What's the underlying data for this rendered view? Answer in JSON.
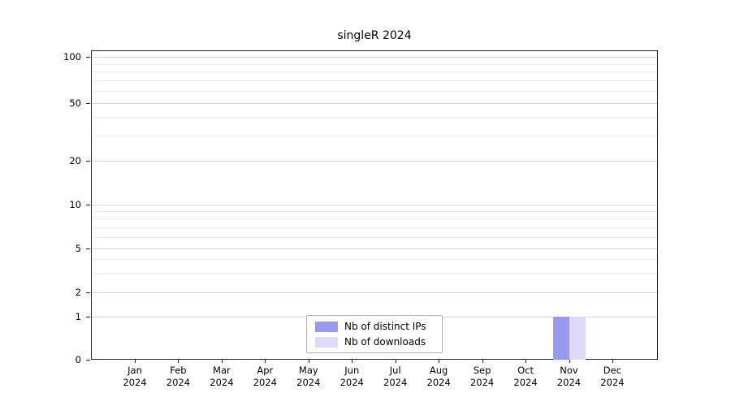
{
  "title": "singleR 2024",
  "legend": {
    "items": [
      {
        "label": "Nb of distinct IPs",
        "color": "#9999ee"
      },
      {
        "label": "Nb of downloads",
        "color": "#dcdcf8"
      }
    ]
  },
  "chart_data": {
    "type": "bar",
    "title": "singleR 2024",
    "categories": [
      "Jan",
      "Feb",
      "Mar",
      "Apr",
      "May",
      "Jun",
      "Jul",
      "Aug",
      "Sep",
      "Oct",
      "Nov",
      "Dec"
    ],
    "year_label": "2024",
    "series": [
      {
        "name": "Nb of distinct IPs",
        "color": "#9999ee",
        "values": [
          0,
          0,
          0,
          0,
          0,
          0,
          0,
          0,
          0,
          0,
          1,
          0
        ]
      },
      {
        "name": "Nb of downloads",
        "color": "#dcdcf8",
        "values": [
          0,
          0,
          0,
          0,
          0,
          0,
          0,
          0,
          0,
          0,
          1,
          0
        ]
      }
    ],
    "xlabel": "",
    "ylabel": "",
    "y_ticks": [
      0,
      1,
      2,
      5,
      10,
      20,
      50,
      100
    ],
    "y_minor_gridlines": [
      3,
      4,
      6,
      7,
      8,
      9,
      30,
      40,
      60,
      70,
      80,
      90
    ],
    "ylim": [
      0,
      100
    ],
    "y_scale": "log-like (0 linear below 1)",
    "grid": "horizontal",
    "legend_position": "bottom-center-inside"
  }
}
